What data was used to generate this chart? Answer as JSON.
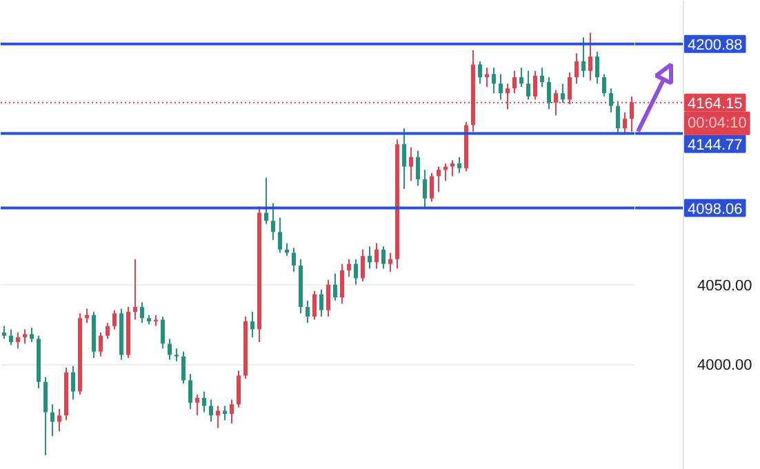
{
  "chart_data": {
    "type": "candlestick",
    "categories": [
      null,
      null,
      null,
      null,
      null,
      null,
      null,
      null,
      null,
      null,
      null,
      null,
      null,
      null,
      null,
      null,
      null,
      null,
      null,
      null,
      null,
      null,
      null,
      null,
      null,
      null,
      null,
      null,
      null,
      null,
      null,
      null,
      null,
      null,
      null,
      null,
      null,
      null,
      null,
      null,
      null,
      null,
      null,
      null,
      null,
      null,
      null,
      null,
      null,
      null,
      null,
      null,
      null,
      null,
      null,
      null,
      null,
      null,
      null,
      null,
      null,
      null,
      null,
      null,
      null,
      null,
      null,
      null,
      null,
      null,
      null,
      null,
      null,
      null,
      null,
      null,
      null,
      null,
      null,
      null,
      null,
      null,
      null,
      null,
      null,
      null,
      null,
      null,
      null,
      null,
      null,
      null
    ],
    "ohlc": [
      [
        4020,
        4024,
        4016,
        4018
      ],
      [
        4018,
        4022,
        4012,
        4014
      ],
      [
        4014,
        4020,
        4010,
        4017
      ],
      [
        4017,
        4022,
        4013,
        4019
      ],
      [
        4019,
        4023,
        4014,
        4016
      ],
      [
        4016,
        4018,
        3985,
        3989
      ],
      [
        3989,
        3992,
        3943,
        3970
      ],
      [
        3970,
        3975,
        3955,
        3964
      ],
      [
        3964,
        3972,
        3958,
        3968
      ],
      [
        3968,
        3998,
        3965,
        3995
      ],
      [
        3995,
        3999,
        3978,
        3983
      ],
      [
        3983,
        4032,
        3981,
        4029
      ],
      [
        4029,
        4035,
        4026,
        4031
      ],
      [
        4031,
        4033,
        4004,
        4008
      ],
      [
        4008,
        4020,
        4005,
        4018
      ],
      [
        4018,
        4026,
        4016,
        4024
      ],
      [
        4024,
        4034,
        4022,
        4032
      ],
      [
        4032,
        4035,
        4003,
        4006
      ],
      [
        4006,
        4036,
        4004,
        4033
      ],
      [
        4033,
        4066,
        4028,
        4036
      ],
      [
        4036,
        4039,
        4026,
        4029
      ],
      [
        4029,
        4031,
        4025,
        4027
      ],
      [
        4027,
        4031,
        4024,
        4028
      ],
      [
        4028,
        4030,
        4010,
        4013
      ],
      [
        4013,
        4016,
        4003,
        4006
      ],
      [
        4006,
        4010,
        4002,
        4005
      ],
      [
        4005,
        4008,
        3988,
        3990
      ],
      [
        3990,
        3994,
        3972,
        3976
      ],
      [
        3976,
        3981,
        3968,
        3979
      ],
      [
        3979,
        3983,
        3970,
        3974
      ],
      [
        3974,
        3978,
        3964,
        3968
      ],
      [
        3968,
        3974,
        3960,
        3971
      ],
      [
        3971,
        3974,
        3965,
        3969
      ],
      [
        3969,
        3978,
        3963,
        3975
      ],
      [
        3975,
        3996,
        3973,
        3993
      ],
      [
        3993,
        4030,
        3991,
        4027
      ],
      [
        4027,
        4033,
        4017,
        4022
      ],
      [
        4022,
        4099,
        4014,
        4095
      ],
      [
        4095,
        4117,
        4088,
        4090
      ],
      [
        4090,
        4101,
        4078,
        4083
      ],
      [
        4083,
        4092,
        4070,
        4072
      ],
      [
        4072,
        4076,
        4068,
        4070
      ],
      [
        4070,
        4073,
        4058,
        4062
      ],
      [
        4062,
        4066,
        4032,
        4036
      ],
      [
        4036,
        4040,
        4026,
        4030
      ],
      [
        4030,
        4046,
        4028,
        4044
      ],
      [
        4044,
        4047,
        4030,
        4034
      ],
      [
        4034,
        4053,
        4030,
        4050
      ],
      [
        4050,
        4057,
        4040,
        4042
      ],
      [
        4042,
        4063,
        4038,
        4059
      ],
      [
        4059,
        4066,
        4055,
        4063
      ],
      [
        4063,
        4066,
        4050,
        4054
      ],
      [
        4054,
        4072,
        4052,
        4068
      ],
      [
        4068,
        4074,
        4060,
        4064
      ],
      [
        4064,
        4076,
        4060,
        4072
      ],
      [
        4072,
        4074,
        4060,
        4063
      ],
      [
        4063,
        4070,
        4058,
        4066
      ],
      [
        4066,
        4141,
        4060,
        4138
      ],
      [
        4138,
        4148,
        4110,
        4124
      ],
      [
        4124,
        4136,
        4115,
        4130
      ],
      [
        4130,
        4134,
        4112,
        4116
      ],
      [
        4116,
        4122,
        4098,
        4104
      ],
      [
        4104,
        4120,
        4102,
        4118
      ],
      [
        4118,
        4124,
        4108,
        4122
      ],
      [
        4122,
        4126,
        4115,
        4124
      ],
      [
        4124,
        4128,
        4118,
        4126
      ],
      [
        4126,
        4130,
        4120,
        4123
      ],
      [
        4123,
        4152,
        4121,
        4150
      ],
      [
        4150,
        4197,
        4146,
        4188
      ],
      [
        4188,
        4190,
        4176,
        4180
      ],
      [
        4180,
        4186,
        4174,
        4182
      ],
      [
        4182,
        4186,
        4170,
        4176
      ],
      [
        4176,
        4182,
        4166,
        4170
      ],
      [
        4170,
        4176,
        4160,
        4173
      ],
      [
        4173,
        4184,
        4170,
        4180
      ],
      [
        4180,
        4186,
        4174,
        4176
      ],
      [
        4176,
        4184,
        4166,
        4168
      ],
      [
        4168,
        4184,
        4166,
        4181
      ],
      [
        4181,
        4186,
        4174,
        4177
      ],
      [
        4177,
        4180,
        4160,
        4164
      ],
      [
        4164,
        4172,
        4156,
        4170
      ],
      [
        4170,
        4176,
        4164,
        4166
      ],
      [
        4166,
        4183,
        4163,
        4180
      ],
      [
        4180,
        4195,
        4176,
        4190
      ],
      [
        4190,
        4205,
        4180,
        4184
      ],
      [
        4184,
        4208,
        4178,
        4193
      ],
      [
        4193,
        4196,
        4176,
        4180
      ],
      [
        4180,
        4182,
        4168,
        4170
      ],
      [
        4170,
        4173,
        4158,
        4162
      ],
      [
        4162,
        4165,
        4145,
        4148
      ],
      [
        4148,
        4158,
        4145,
        4154
      ],
      [
        4154,
        4168,
        4146,
        4164.15
      ]
    ],
    "colors": [
      "#22917d",
      "#22917d",
      "#e0434f",
      "#e0434f",
      "#22917d",
      "#22917d",
      "#22917d",
      "#22917d",
      "#e0434f",
      "#e0434f",
      "#22917d",
      "#e0434f",
      "#e0434f",
      "#22917d",
      "#e0434f",
      "#e0434f",
      "#e0434f",
      "#22917d",
      "#e0434f",
      "#e0434f",
      "#22917d",
      "#22917d",
      "#e0434f",
      "#22917d",
      "#22917d",
      "#22917d",
      "#22917d",
      "#22917d",
      "#e0434f",
      "#22917d",
      "#22917d",
      "#e0434f",
      "#22917d",
      "#e0434f",
      "#e0434f",
      "#e0434f",
      "#22917d",
      "#e0434f",
      "#22917d",
      "#22917d",
      "#22917d",
      "#22917d",
      "#22917d",
      "#22917d",
      "#22917d",
      "#e0434f",
      "#22917d",
      "#e0434f",
      "#22917d",
      "#e0434f",
      "#e0434f",
      "#22917d",
      "#e0434f",
      "#22917d",
      "#e0434f",
      "#22917d",
      "#e0434f",
      "#e0434f",
      "#22917d",
      "#e0434f",
      "#22917d",
      "#22917d",
      "#e0434f",
      "#e0434f",
      "#e0434f",
      "#e0434f",
      "#22917d",
      "#e0434f",
      "#e0434f",
      "#22917d",
      "#e0434f",
      "#22917d",
      "#22917d",
      "#e0434f",
      "#e0434f",
      "#22917d",
      "#22917d",
      "#e0434f",
      "#22917d",
      "#22917d",
      "#e0434f",
      "#22917d",
      "#e0434f",
      "#e0434f",
      "#22917d",
      "#e0434f",
      "#22917d",
      "#22917d",
      "#22917d",
      "#22917d",
      "#e0434f",
      "#e0434f"
    ],
    "ylim": [
      3934,
      4228
    ],
    "yticks": [
      {
        "value": 4050,
        "label": "4050.00"
      },
      {
        "value": 4000,
        "label": "4000.00"
      }
    ],
    "grid": "y",
    "ref_lines": [
      {
        "axis": "y",
        "value": 4200.88,
        "label": "4200.88",
        "color": "#2b50d8",
        "line_style": "solid"
      },
      {
        "axis": "y",
        "value": 4164.15,
        "label": "4164.15",
        "color": "#e0434f",
        "line_style": "dotted"
      },
      {
        "axis": "y",
        "value": 4144.77,
        "label": "4144.77",
        "color": "#2b50d8",
        "line_style": "solid"
      },
      {
        "axis": "y",
        "value": 4098.06,
        "label": "4098.06",
        "color": "#2b50d8",
        "line_style": "solid"
      }
    ],
    "annotations": [
      "00:04:10"
    ]
  }
}
